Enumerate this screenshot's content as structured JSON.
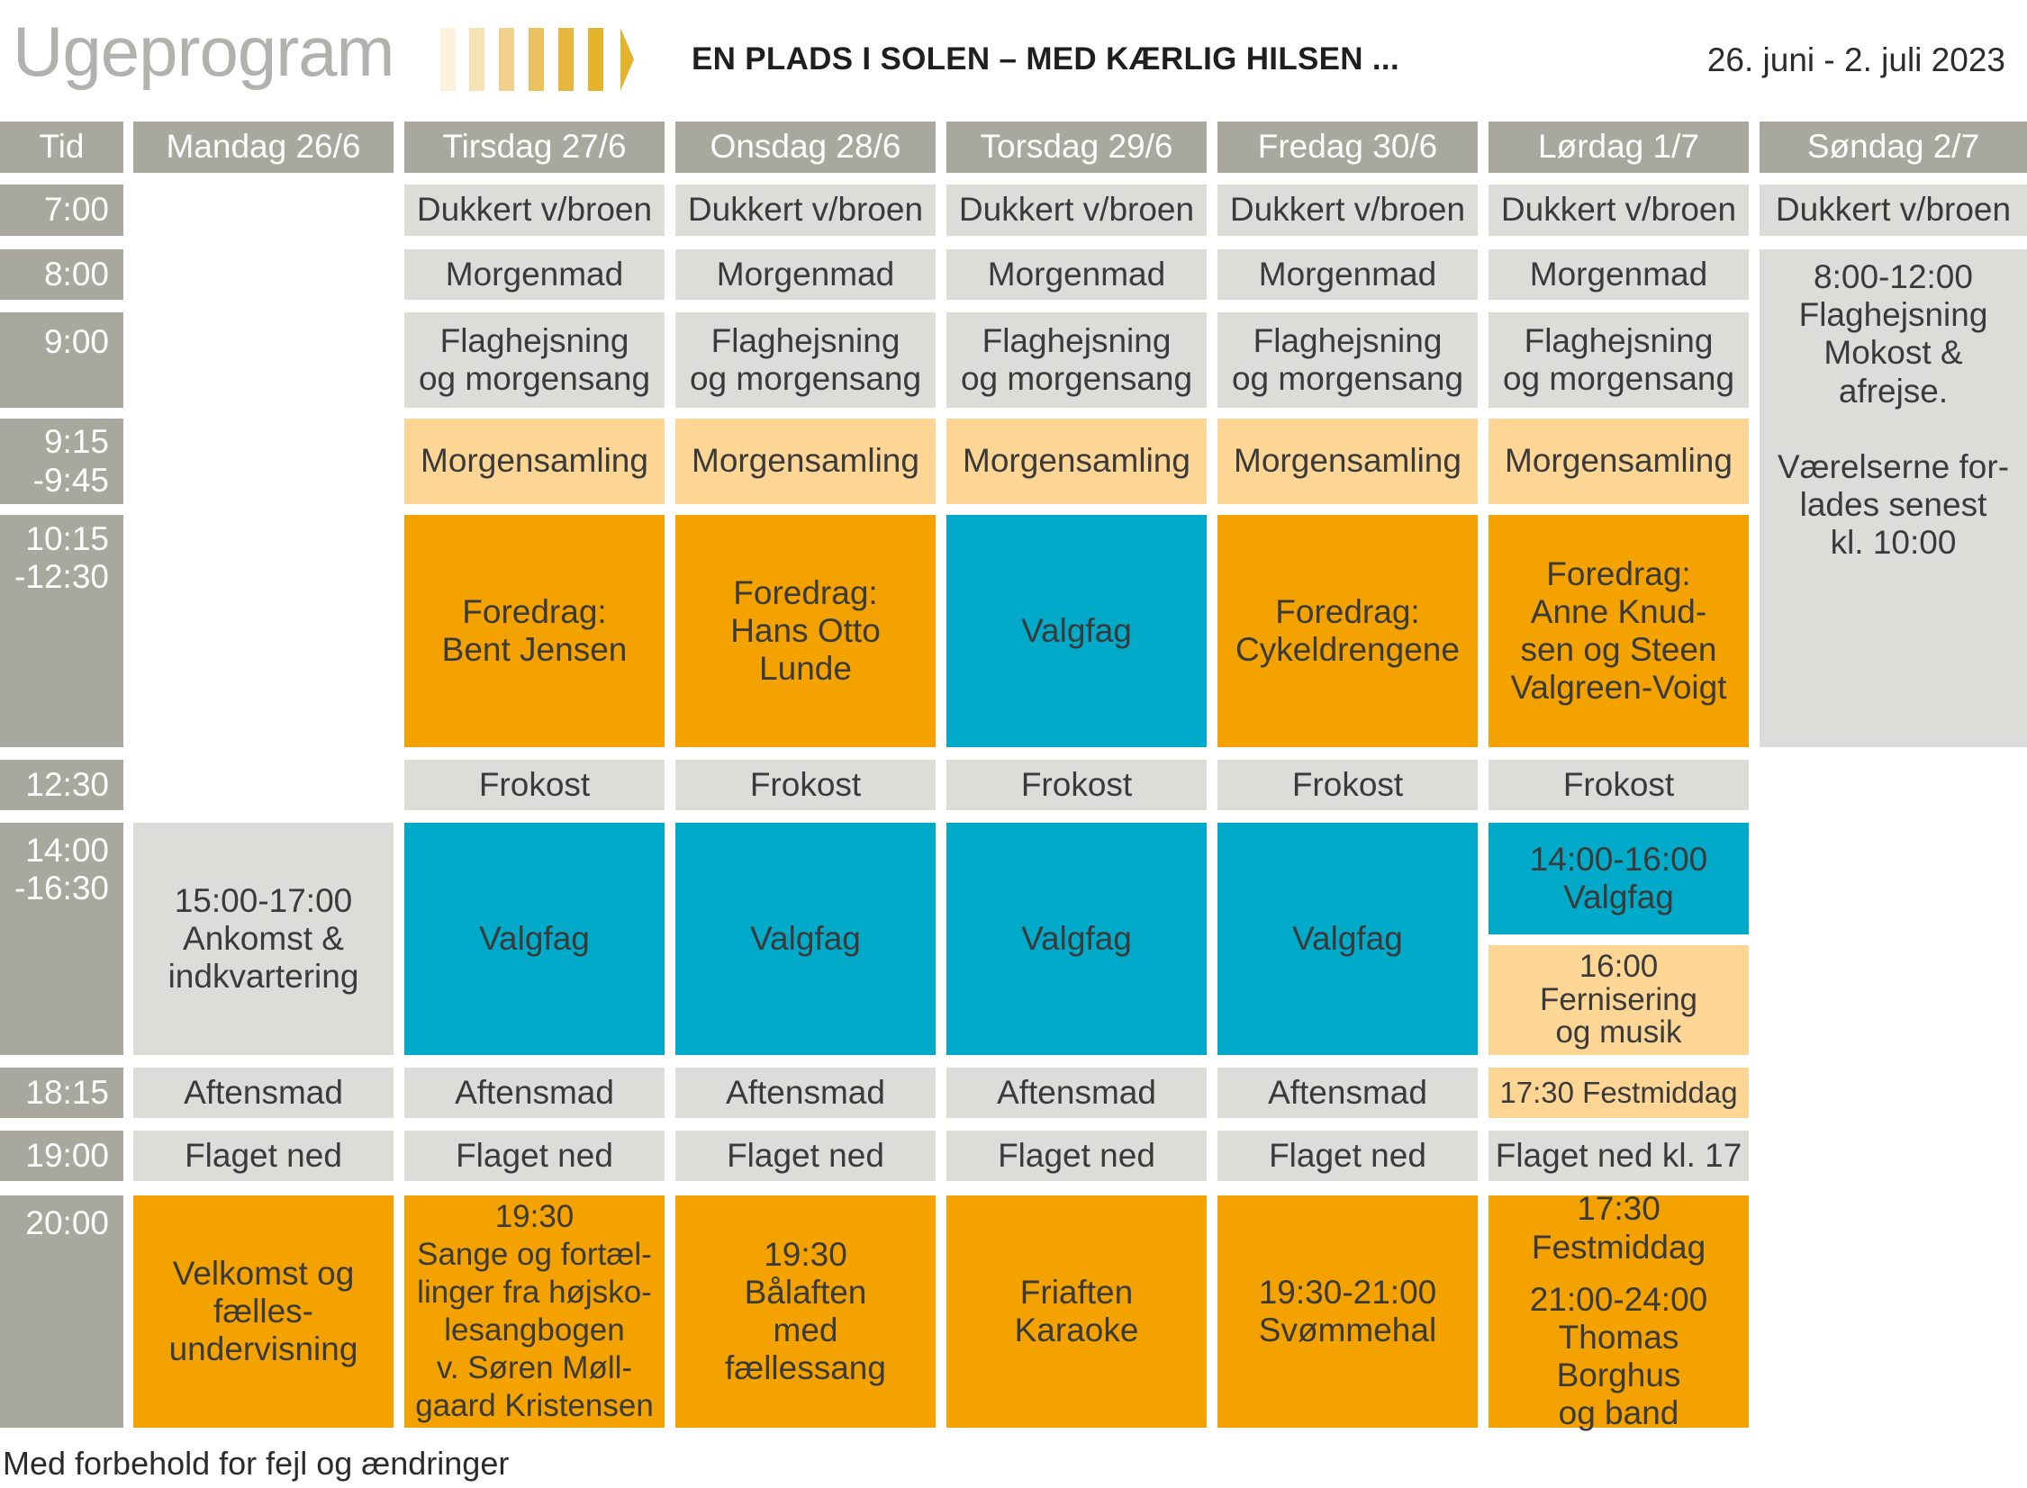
{
  "header": {
    "title": "Ugeprogram",
    "subtitle": "EN PLADS I SOLEN – MED KÆRLIG HILSEN ...",
    "date_range": "26. juni - 2. juli 2023"
  },
  "colors": {
    "header_gray": "#a9a89e",
    "light_gray": "#dcdcd8",
    "orange": "#f3a200",
    "blue": "#00aac8",
    "light_orange": "#fdd595",
    "title_gray": "#b1b1ad",
    "stripe_gold": "#e5b22c"
  },
  "schedule": {
    "col_tid": "Tid",
    "days": [
      "Mandag 26/6",
      "Tirsdag 27/6",
      "Onsdag 28/6",
      "Torsdag 29/6",
      "Fredag 30/6",
      "Lørdag 1/7",
      "Søndag 2/7"
    ],
    "times": [
      "7:00",
      "8:00",
      "9:00",
      "9:15\n-9:45",
      "10:15\n-12:30",
      "12:30",
      "14:00\n-16:30",
      "18:15",
      "19:00",
      "20:00"
    ],
    "row_0700": [
      "Dukkert v/broen",
      "Dukkert v/broen",
      "Dukkert v/broen",
      "Dukkert v/broen",
      "Dukkert v/broen",
      "Dukkert v/broen"
    ],
    "row_0800": [
      "Morgenmad",
      "Morgenmad",
      "Morgenmad",
      "Morgenmad",
      "Morgenmad"
    ],
    "row_0900": [
      "Flaghejsning\nog morgensang",
      "Flaghejsning\nog morgensang",
      "Flaghejsning\nog morgensang",
      "Flaghejsning\nog morgensang",
      "Flaghejsning\nog morgensang"
    ],
    "row_0915": [
      "Morgensamling",
      "Morgensamling",
      "Morgensamling",
      "Morgensamling",
      "Morgensamling"
    ],
    "row_1015": [
      "Foredrag:\nBent Jensen",
      "Foredrag:\nHans Otto\nLunde",
      "Valgfag",
      "Foredrag:\nCykeldrengene",
      "Foredrag:\nAnne Knud-\nsen og Steen\nValgreen-Voigt"
    ],
    "sunday_block": "8:00-12:00\nFlaghejsning\nMokost &\nafrejse.\n\nVærelserne for-\nlades senest\nkl. 10:00",
    "row_1230": [
      "Frokost",
      "Frokost",
      "Frokost",
      "Frokost",
      "Frokost"
    ],
    "row_1400": [
      "15:00-17:00\nAnkomst &\nindkvartering",
      "Valgfag",
      "Valgfag",
      "Valgfag",
      "Valgfag"
    ],
    "saturday_1400": "14:00-16:00\nValgfag",
    "saturday_1600": "16:00\nFernisering\nog musik",
    "row_1815": [
      "Aftensmad",
      "Aftensmad",
      "Aftensmad",
      "Aftensmad",
      "Aftensmad",
      "17:30 Festmiddag"
    ],
    "row_1900": [
      "Flaget ned",
      "Flaget ned",
      "Flaget ned",
      "Flaget ned",
      "Flaget ned",
      "Flaget ned kl. 17"
    ],
    "row_2000": [
      "Velkomst og\nfælles-\nundervisning",
      "19:30\nSange og fortæl-\nlinger fra højsko-\nlesangbogen\nv. Søren Møll-\ngaard Kristensen",
      "19:30\nBålaften\nmed\nfællessang",
      "Friaften\nKaraoke",
      "19:30-21:00\nSvømmehal"
    ],
    "saturday_2000_a": "17:30\nFestmiddag",
    "saturday_2000_b": "21:00-24:00\nThomas Borghus\nog band"
  },
  "footer": "Med forbehold for fejl og ændringer"
}
